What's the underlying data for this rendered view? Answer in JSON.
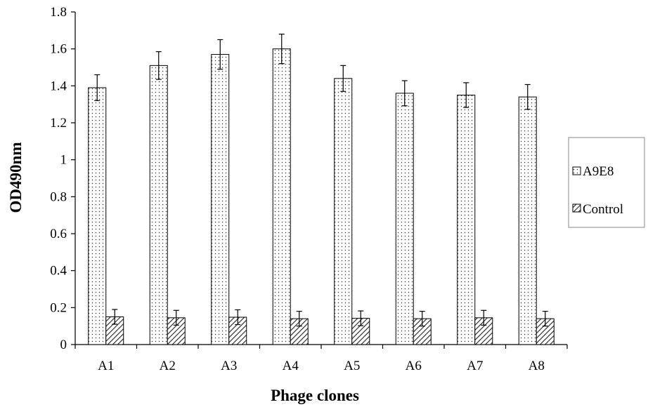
{
  "chart_data": {
    "type": "bar",
    "title": "",
    "xlabel": "Phage clones",
    "ylabel": "OD490nm",
    "categories": [
      "A1",
      "A2",
      "A3",
      "A4",
      "A5",
      "A6",
      "A7",
      "A8"
    ],
    "ylim": [
      0,
      1.8
    ],
    "yticks": [
      "0",
      "0.2",
      "0.4",
      "0.6",
      "0.8",
      "1",
      "1.2",
      "1.4",
      "1.6",
      "1.8"
    ],
    "grid": false,
    "legend_position": "right",
    "series": [
      {
        "name": "A9E8",
        "pattern": "dotted",
        "values": [
          1.39,
          1.51,
          1.57,
          1.6,
          1.44,
          1.36,
          1.35,
          1.34
        ],
        "errors": [
          0.07,
          0.075,
          0.08,
          0.08,
          0.07,
          0.068,
          0.067,
          0.067
        ]
      },
      {
        "name": "Control",
        "pattern": "hatched",
        "values": [
          0.15,
          0.145,
          0.148,
          0.14,
          0.142,
          0.14,
          0.145,
          0.14
        ],
        "errors": [
          0.04,
          0.04,
          0.04,
          0.04,
          0.04,
          0.04,
          0.04,
          0.04
        ]
      }
    ]
  }
}
